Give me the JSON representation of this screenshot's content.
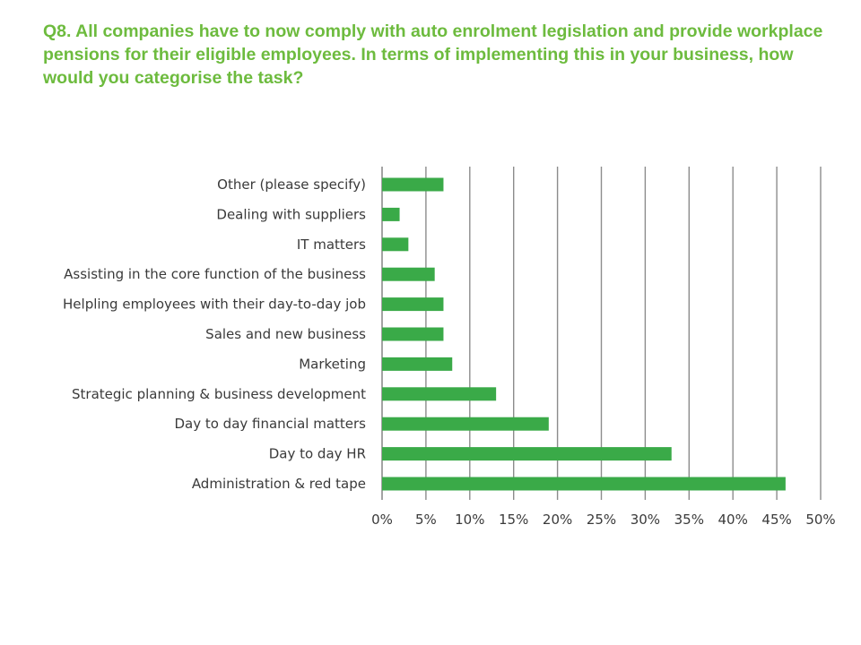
{
  "question": "Q8. All companies have to now comply with auto enrolment legislation and provide workplace pensions for their eligible employees.  In terms of implementing this in your business, how would you categorise the task?",
  "colors": {
    "title": "#6dbb3e",
    "bar": "#3aaa48",
    "grid": "#8c8c8c"
  },
  "chart_data": {
    "type": "bar",
    "orientation": "horizontal",
    "categories": [
      "Other (please specify)",
      "Dealing with suppliers",
      "IT matters",
      "Assisting in the core function of the business",
      "Helpling employees with their day-to-day job",
      "Sales and new business",
      "Marketing",
      "Strategic planning & business development",
      "Day to day financial matters",
      "Day to day HR",
      "Administration & red tape"
    ],
    "values": [
      7,
      2,
      3,
      6,
      7,
      7,
      8,
      13,
      19,
      33,
      46
    ],
    "xlim": [
      0,
      50
    ],
    "xticks": [
      "0%",
      "5%",
      "10%",
      "15%",
      "20%",
      "25%",
      "30%",
      "35%",
      "40%",
      "45%",
      "50%"
    ],
    "grid": true,
    "legend": "none"
  }
}
